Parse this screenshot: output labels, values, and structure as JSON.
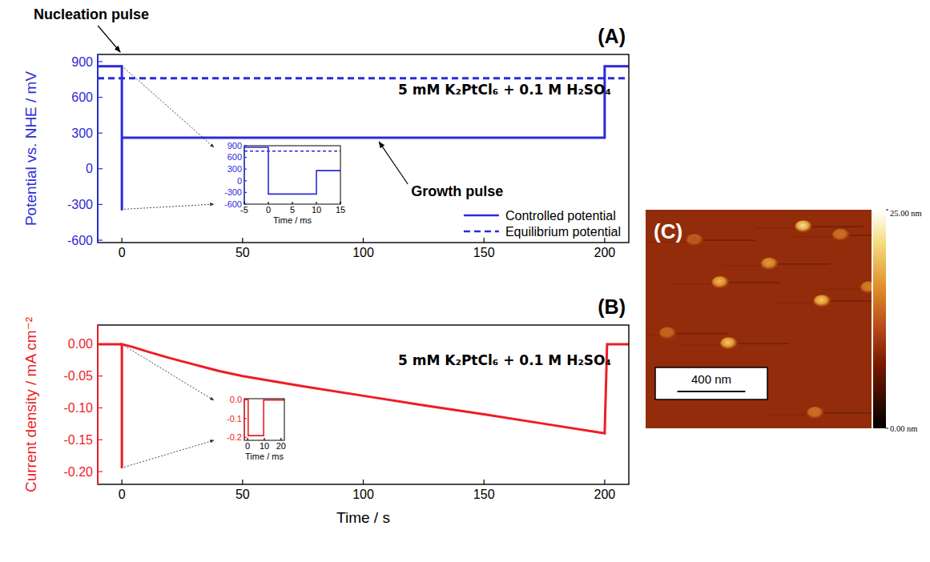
{
  "chart_data": [
    {
      "type": "line",
      "label": "(A)",
      "subtitle": "5 mM K₂PtCl₆ + 0.1 M H₂SO₄",
      "y_label": "Potential vs. NHE / mV",
      "annotations": [
        "Nucleation pulse",
        "Growth pulse"
      ],
      "xlim": [
        -10,
        210
      ],
      "xticks": [
        0,
        50,
        100,
        150,
        200
      ],
      "ylim": [
        -620,
        960
      ],
      "yticks": [
        -600,
        -300,
        0,
        300,
        600,
        900
      ],
      "color": "#2b2bd9",
      "legend": "lower right",
      "series": [
        {
          "name": "Controlled potential",
          "color": "#2b2bd9",
          "line_style": "solid",
          "x": [
            -10,
            0,
            0,
            0.01,
            0.01,
            200,
            200,
            210
          ],
          "values": [
            860,
            860,
            -340,
            -340,
            260,
            260,
            860,
            860
          ]
        },
        {
          "name": "Equilibrium potential",
          "color": "#2b2bd9",
          "line_style": "dashed",
          "x": [
            -10,
            210
          ],
          "values": [
            760,
            760
          ]
        }
      ]
    },
    {
      "type": "line",
      "x_label": "Time / ms",
      "xlim": [
        -5,
        15
      ],
      "xticks": [
        -5,
        0,
        5,
        10,
        15
      ],
      "ylim": [
        -600,
        900
      ],
      "yticks": [
        -600,
        -300,
        0,
        300,
        600,
        900
      ],
      "color": "#2b2bd9",
      "series": [
        {
          "color": "#2b2bd9",
          "line_style": "solid",
          "x": [
            -5,
            0,
            0,
            10,
            10,
            15
          ],
          "values": [
            860,
            860,
            -340,
            -340,
            260,
            260
          ]
        },
        {
          "color": "#2b2bd9",
          "line_style": "dashed",
          "x": [
            -5,
            15
          ],
          "values": [
            760,
            760
          ]
        }
      ]
    },
    {
      "type": "line",
      "label": "(B)",
      "subtitle": "5 mM K₂PtCl₆ + 0.1 M H₂SO₄",
      "y_label": "Current density / mA cm⁻²",
      "x_label": "Time / s",
      "xlim": [
        -10,
        210
      ],
      "xticks": [
        0,
        50,
        100,
        150,
        200
      ],
      "ylim": [
        -0.22,
        0.03
      ],
      "yticks": [
        {
          "value": 0,
          "label": "0.00"
        },
        -0.05,
        {
          "value": -0.1,
          "label": "-0.10"
        },
        -0.15,
        {
          "value": -0.2,
          "label": "-0.20"
        }
      ],
      "color": "#ee1c25",
      "series": [
        {
          "color": "#ee1c25",
          "line_style": "solid",
          "x": [
            -10,
            0,
            0,
            0.01,
            0.01,
            5,
            10,
            20,
            30,
            40,
            50,
            75,
            100,
            125,
            150,
            175,
            200,
            201,
            210
          ],
          "values": [
            0,
            0,
            -0.193,
            -0.193,
            0,
            -0.005,
            -0.011,
            -0.022,
            -0.032,
            -0.042,
            -0.05,
            -0.066,
            -0.081,
            -0.096,
            -0.11,
            -0.125,
            -0.14,
            0,
            0
          ]
        }
      ]
    },
    {
      "type": "line",
      "x_label": "Time / ms",
      "xlim": [
        -2,
        22
      ],
      "xticks": [
        0,
        10,
        20
      ],
      "ylim": [
        -0.215,
        0.005
      ],
      "yticks": [
        {
          "value": 0,
          "label": "0.0"
        },
        -0.1,
        -0.2
      ],
      "color": "#ee1c25",
      "series": [
        {
          "color": "#ee1c25",
          "line_style": "solid",
          "x": [
            -2,
            0.3,
            0.3,
            9.6,
            9.6,
            22
          ],
          "values": [
            0,
            0,
            -0.19,
            -0.19,
            -0.002,
            -0.002
          ]
        }
      ]
    },
    {
      "type": "image",
      "label": "(C)",
      "xlim": [
        0,
        1330
      ],
      "ylim": [
        0,
        1290
      ],
      "background": 9,
      "scale_bar": {
        "value": 400,
        "label": "400 nm"
      },
      "colorbar": {
        "range": [
          0,
          25
        ],
        "ticks": [
          {
            "value": 25,
            "label": "25.00 nm"
          },
          {
            "value": 0,
            "label": "0.00 nm"
          }
        ]
      },
      "particles": {
        "x": [
          930,
          1150,
          290,
          730,
          440,
          1315,
          1040,
          130,
          490,
          1000
        ],
        "y": [
          100,
          150,
          180,
          320,
          430,
          460,
          540,
          730,
          790,
          1200
        ],
        "height": [
          22,
          14,
          12,
          17,
          19,
          15,
          20,
          13,
          20,
          14
        ]
      }
    }
  ]
}
